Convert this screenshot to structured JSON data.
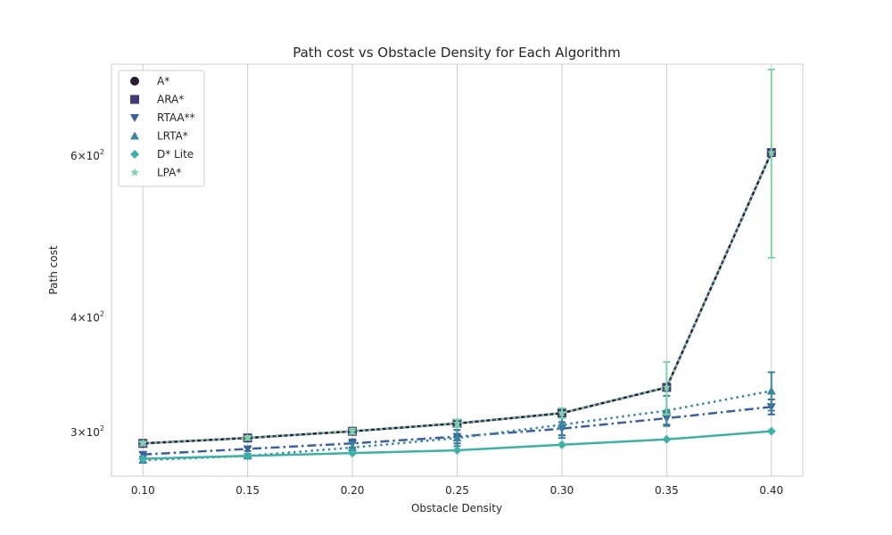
{
  "chart_data": {
    "type": "line",
    "title": "Path cost vs Obstacle Density for Each Algorithm",
    "xlabel": "Obstacle Density",
    "ylabel": "Path cost",
    "yscale": "log",
    "grid": "x-only",
    "legend_position": "top-left",
    "x": [
      0.1,
      0.15,
      0.2,
      0.25,
      0.3,
      0.35,
      0.4
    ],
    "x_ticks": [
      "0.10",
      "0.15",
      "0.20",
      "0.25",
      "0.30",
      "0.35",
      "0.40"
    ],
    "xlim": [
      0.085,
      0.415
    ],
    "ylim": [
      269,
      755
    ],
    "y_ticks": [
      {
        "value": 300,
        "base": "3",
        "exp": "2"
      },
      {
        "value": 400,
        "base": "4",
        "exp": "2"
      },
      {
        "value": 600,
        "base": "6",
        "exp": "2"
      }
    ],
    "series": [
      {
        "name": "A*",
        "color": "#2b1a33",
        "marker": "circle",
        "dash": "solid",
        "values": [
          292,
          296,
          301,
          307,
          315,
          336,
          605
        ],
        "errors": [
          null,
          null,
          null,
          null,
          null,
          null,
          null
        ]
      },
      {
        "name": "ARA*",
        "color": "#403b75",
        "marker": "square",
        "dash": "dashed",
        "values": [
          292,
          296,
          301,
          307,
          315,
          336,
          605
        ],
        "errors": [
          null,
          null,
          null,
          null,
          null,
          null,
          null
        ]
      },
      {
        "name": "RTAA**",
        "color": "#3b609c",
        "marker": "triangle-down",
        "dash": "dashdot",
        "values": [
          284,
          288,
          292,
          297,
          303,
          311,
          320
        ],
        "errors": [
          1.5,
          1.5,
          3,
          5,
          5,
          5,
          6
        ]
      },
      {
        "name": "LRTA*",
        "color": "#35879f",
        "marker": "triangle-up",
        "dash": "dotted",
        "values": [
          280,
          283,
          289,
          296,
          306,
          317,
          333
        ],
        "errors": [
          1.5,
          1.5,
          3.5,
          6,
          10,
          12,
          16
        ]
      },
      {
        "name": "D* Lite",
        "color": "#3eb0a6",
        "marker": "diamond",
        "dash": "solid",
        "values": [
          281,
          283,
          285,
          287,
          291,
          295,
          301
        ],
        "errors": [
          null,
          null,
          null,
          null,
          null,
          null,
          null
        ]
      },
      {
        "name": "LPA*",
        "color": "#7fd3a6",
        "marker": "star",
        "dash": "dotted",
        "values": [
          292,
          296,
          301,
          307,
          315,
          336,
          605
        ],
        "errors": [
          1.5,
          1.5,
          2,
          3,
          4,
          22,
          140
        ]
      }
    ]
  }
}
